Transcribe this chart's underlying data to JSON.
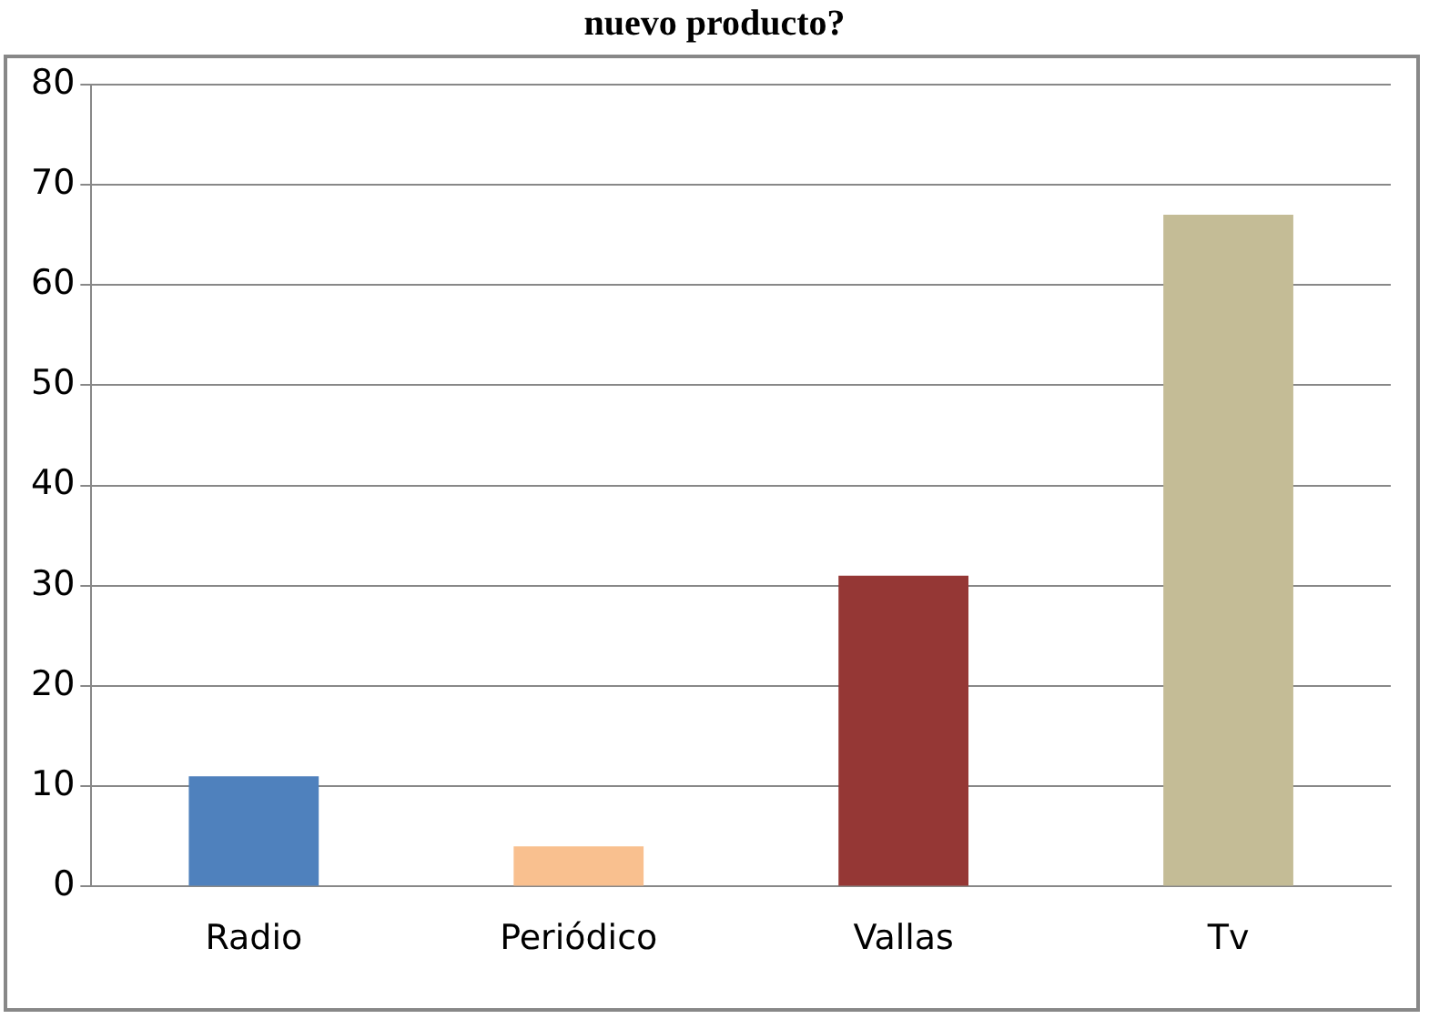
{
  "chart_data": {
    "type": "bar",
    "title": "nuevo producto?",
    "categories": [
      "Radio",
      "Periódico",
      "Vallas",
      "Tv"
    ],
    "values": [
      11,
      4,
      31,
      67
    ],
    "colors": [
      "#4f81bd",
      "#f9c08f",
      "#953735",
      "#c4bc96"
    ],
    "ylim": [
      0,
      80
    ],
    "yticks": [
      0,
      10,
      20,
      30,
      40,
      50,
      60,
      70,
      80
    ],
    "grid": "y",
    "legend": false
  }
}
